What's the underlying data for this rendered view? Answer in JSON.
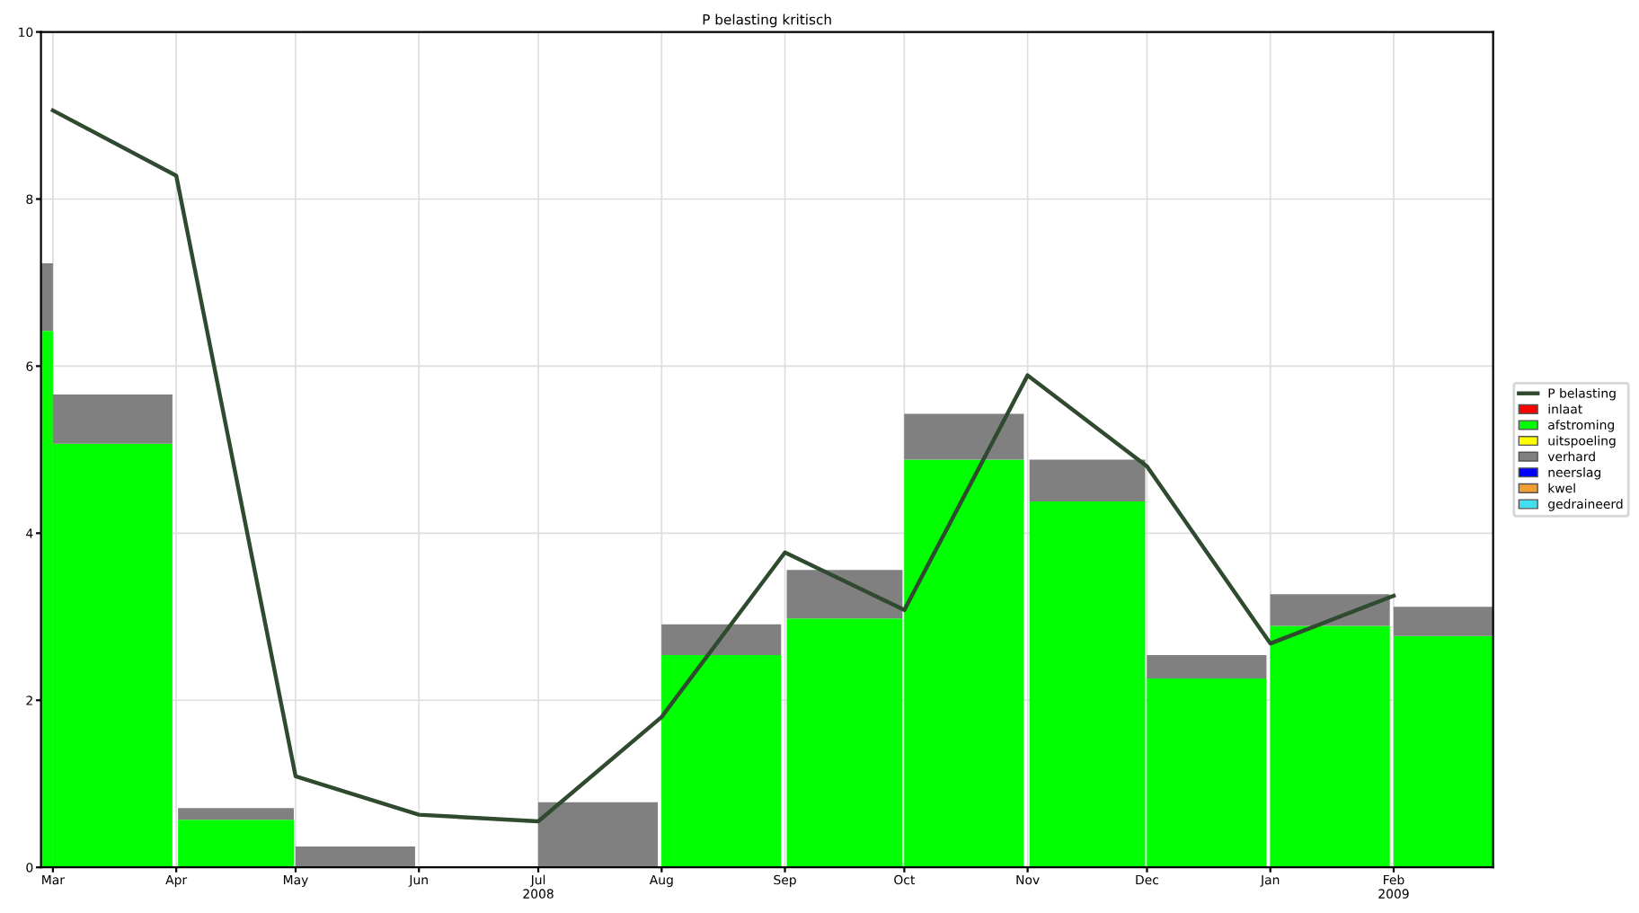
{
  "chart_data": {
    "type": "bar",
    "title": "P belasting kritisch",
    "stacked": true,
    "x": [
      "2008-02-28T12:00",
      "2008-03-16",
      "2008-04-16",
      "2008-05-16",
      "2008-06-16",
      "2008-07-16",
      "2008-08-16",
      "2008-09-16",
      "2008-10-16",
      "2008-11-16",
      "2008-12-16",
      "2009-01-16",
      "2009-02-16"
    ],
    "series": [
      {
        "name": "P belasting",
        "type": "line",
        "color": "#2f4a2f",
        "x": [
          "2008-03-01",
          "2008-04-01",
          "2008-05-01",
          "2008-06-01",
          "2008-07-01",
          "2008-08-01",
          "2008-09-01",
          "2008-10-01",
          "2008-11-01",
          "2008-12-01",
          "2009-01-01",
          "2009-02-01"
        ],
        "values": [
          9.06,
          8.28,
          1.09,
          0.63,
          0.55,
          1.8,
          3.77,
          3.08,
          5.89,
          4.8,
          2.68,
          3.25
        ]
      },
      {
        "name": "inlaat",
        "color": "#ff0000",
        "values": [
          0,
          0,
          0,
          0,
          0,
          0,
          0,
          0,
          0,
          0,
          0,
          0,
          0
        ]
      },
      {
        "name": "afstroming",
        "color": "#00ff00",
        "values": [
          6.42,
          5.07,
          0.57,
          0,
          0,
          0,
          2.54,
          2.98,
          4.88,
          4.38,
          2.26,
          2.89,
          2.77
        ]
      },
      {
        "name": "uitspoeling",
        "color": "#ffff00",
        "values": [
          0,
          0,
          0,
          0,
          0,
          0,
          0,
          0,
          0,
          0,
          0,
          0,
          0
        ]
      },
      {
        "name": "verhard",
        "color": "#808080",
        "values": [
          0.81,
          0.59,
          0.14,
          0.25,
          0,
          0.78,
          0.37,
          0.58,
          0.55,
          0.5,
          0.28,
          0.38,
          0.35
        ]
      },
      {
        "name": "neerslag",
        "color": "#0000ff",
        "values": [
          0,
          0,
          0,
          0,
          0,
          0,
          0,
          0,
          0,
          0,
          0,
          0,
          0
        ]
      },
      {
        "name": "kwel",
        "color": "#f0a030",
        "values": [
          0,
          0,
          0,
          0,
          0,
          0,
          0,
          0,
          0,
          0,
          0,
          0,
          0
        ]
      },
      {
        "name": "gedraineerd",
        "color": "#40e0f0",
        "values": [
          0,
          0,
          0,
          0,
          0,
          0,
          0,
          0,
          0,
          0,
          0,
          0,
          0
        ]
      }
    ],
    "xlim": [
      "2008-02-27",
      "2009-02-26"
    ],
    "xticks": [
      {
        "value": "2008-03-01",
        "label": "Mar"
      },
      {
        "value": "2008-04-01",
        "label": "Apr"
      },
      {
        "value": "2008-05-01",
        "label": "May"
      },
      {
        "value": "2008-06-01",
        "label": "Jun"
      },
      {
        "value": "2008-07-01",
        "label": "Jul\n2008"
      },
      {
        "value": "2008-08-01",
        "label": "Aug"
      },
      {
        "value": "2008-09-01",
        "label": "Sep"
      },
      {
        "value": "2008-10-01",
        "label": "Oct"
      },
      {
        "value": "2008-11-01",
        "label": "Nov"
      },
      {
        "value": "2008-12-01",
        "label": "Dec"
      },
      {
        "value": "2009-01-01",
        "label": "Jan"
      },
      {
        "value": "2009-02-01",
        "label": "Feb\n2009"
      }
    ],
    "ylim": [
      0,
      10
    ],
    "yticks": [
      0,
      2,
      4,
      6,
      8,
      10
    ],
    "grid": true,
    "legend": "right"
  }
}
